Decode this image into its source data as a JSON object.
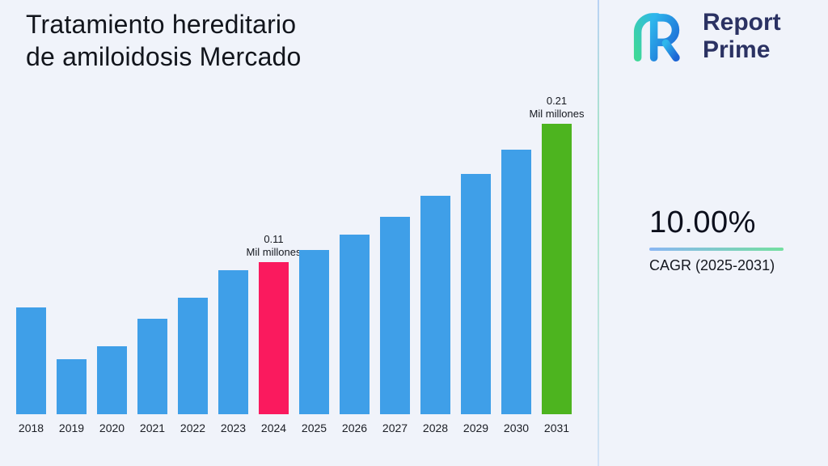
{
  "header": {
    "title": "Tratamiento hereditario de amiloidosis Mercado"
  },
  "logo": {
    "line1": "Report",
    "line2": "Prime"
  },
  "cagr": {
    "value": "10.00%",
    "label": "CAGR (2025-2031)"
  },
  "colors": {
    "background": "#f0f3fa",
    "text_dark": "#12151c",
    "brand_navy": "#2b3263",
    "accent_blue": "#8ab6f3",
    "accent_green": "#74dfa0",
    "logo_teal": "#3fd898",
    "logo_light_blue": "#2eb6ec",
    "logo_blue": "#1c64d4"
  },
  "chart_data": {
    "type": "bar",
    "title": "Tratamiento hereditario de amiloidosis Mercado",
    "xlabel": "",
    "ylabel": "Mil millones",
    "unit": "Mil millones",
    "categories": [
      "2018",
      "2019",
      "2020",
      "2021",
      "2022",
      "2023",
      "2024",
      "2025",
      "2026",
      "2027",
      "2028",
      "2029",
      "2030",
      "2031"
    ],
    "values": [
      0.077,
      0.04,
      0.049,
      0.069,
      0.084,
      0.104,
      0.11,
      0.119,
      0.13,
      0.143,
      0.158,
      0.174,
      0.191,
      0.21
    ],
    "ylim": [
      0,
      0.21
    ],
    "grid": false,
    "legend": false,
    "colors": {
      "default": "#3f9fe8",
      "2024": "#fa1a5e",
      "2031": "#4db41f"
    },
    "annotations": {
      "2024": [
        "0.11",
        "Mil millones"
      ],
      "2031": [
        "0.21",
        "Mil millones"
      ]
    }
  }
}
